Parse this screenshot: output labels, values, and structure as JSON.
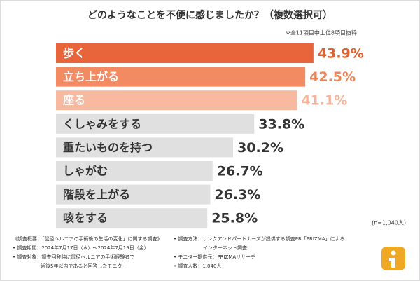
{
  "chart_data": {
    "type": "bar",
    "orientation": "horizontal",
    "title": "どのようなことを不便に感じましたか？（複数選択可）",
    "subtitle": "※全11項目中上位8項目抜粋",
    "categories": [
      "歩く",
      "立ち上がる",
      "座る",
      "くしゃみをする",
      "重たいものを持つ",
      "しゃがむ",
      "階段を上がる",
      "咳をする"
    ],
    "values": [
      43.9,
      42.5,
      41.1,
      33.8,
      30.2,
      26.7,
      26.3,
      25.8
    ],
    "value_labels": [
      "43.9%",
      "42.5%",
      "41.1%",
      "33.8%",
      "30.2%",
      "26.7%",
      "26.3%",
      "25.8%"
    ],
    "colors": [
      "#e8643a",
      "#f28a62",
      "#f7b9a0",
      "#e0e0e0",
      "#e0e0e0",
      "#e0e0e0",
      "#e0e0e0",
      "#e0e0e0"
    ],
    "value_label_colors": [
      "#e2622f",
      "#ee8357",
      "#f5b399",
      "#333333",
      "#333333",
      "#333333",
      "#333333",
      "#333333"
    ],
    "sample_note": "(n=1,040人)"
  },
  "notes": {
    "left": [
      "《調査概要：「鼠径ヘルニアの手術後の生活の変化」に関する調査》",
      "• 調査期間：2024年7月17日（水）〜2024年7月19日（金）",
      "• 調査対象：調査回答時に鼠径ヘルニアの手術経験者で",
      "術後5年以内であると回答したモニター"
    ],
    "right": [
      "• 調査方法：リンクアンドパートナーズが提供する調査PR「PRIZMA」による",
      "インターネット調査",
      "• モニター提供元：PRIZMAリサーチ",
      "• 調査人数：1,040人"
    ]
  }
}
